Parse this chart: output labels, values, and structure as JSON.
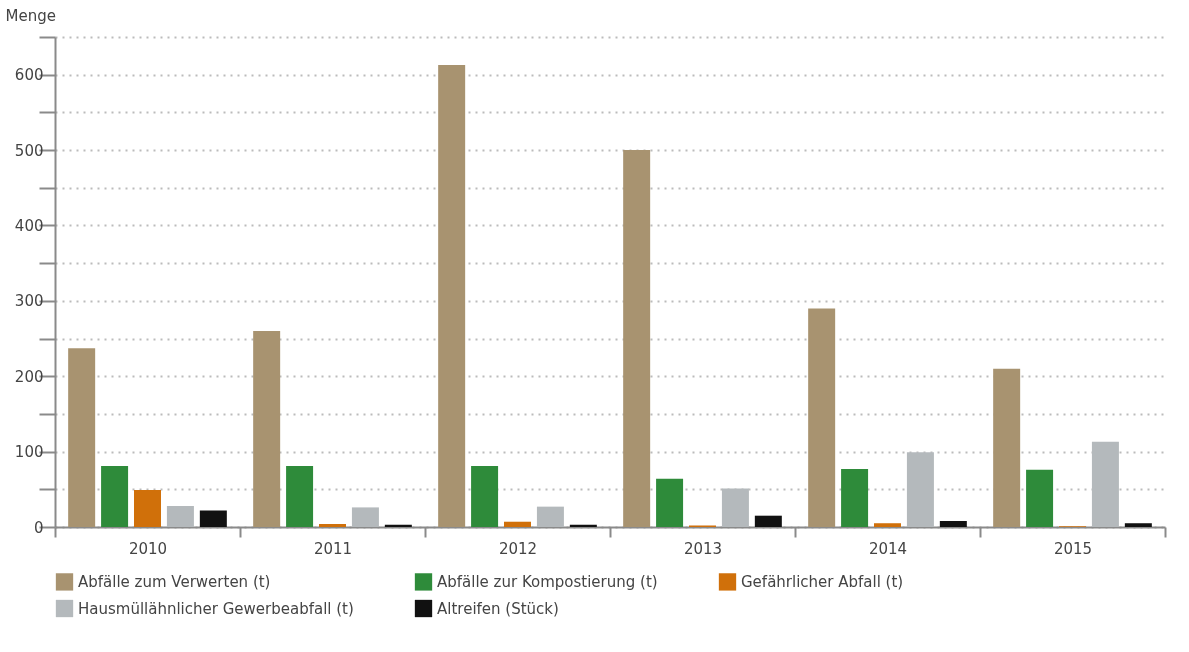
{
  "chart_data": {
    "type": "bar",
    "ylabel": "Menge",
    "categories": [
      "2010",
      "2011",
      "2012",
      "2013",
      "2014",
      "2015"
    ],
    "series": [
      {
        "name": "Abfälle zum Verwerten (t)",
        "color": "#a89370",
        "values": [
          237,
          260,
          613,
          500,
          290,
          210
        ]
      },
      {
        "name": "Abfälle zur Kompostierung (t)",
        "color": "#2e8b3a",
        "values": [
          81,
          81,
          81,
          64,
          77,
          76
        ]
      },
      {
        "name": "Gefährlicher Abfall (t)",
        "color": "#d0700a",
        "values": [
          49,
          4,
          7,
          2,
          5,
          1
        ]
      },
      {
        "name": "Hausmüllähnlicher Gewerbeabfall (t)",
        "color": "#b4b9bc",
        "values": [
          28,
          26,
          27,
          51,
          99,
          113
        ]
      },
      {
        "name": "Altreifen (Stück)",
        "color": "#111111",
        "values": [
          22,
          3,
          3,
          15,
          8,
          5
        ]
      }
    ],
    "ylim": [
      0,
      650
    ],
    "yticks": [
      0,
      {
        "value": 50,
        "label": null
      },
      100,
      {
        "value": 150,
        "label": null
      },
      200,
      {
        "value": 250,
        "label": null
      },
      300,
      {
        "value": 350,
        "label": null
      },
      400,
      {
        "value": 450,
        "label": null
      },
      500,
      {
        "value": 550,
        "label": null
      },
      600,
      {
        "value": 650,
        "label": null
      }
    ],
    "grid": true,
    "legend": "bottom"
  }
}
